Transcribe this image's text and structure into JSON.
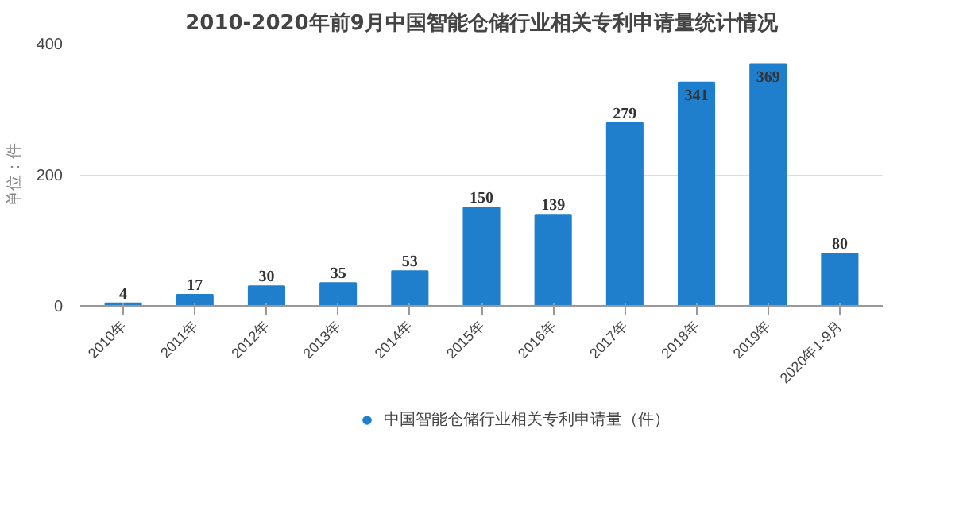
{
  "chart_data": {
    "type": "bar",
    "title": "2010-2020年前9月中国智能仓储行业相关专利申请量统计情况",
    "ylabel": "单位：件",
    "categories": [
      "2010年",
      "2011年",
      "2012年",
      "2013年",
      "2014年",
      "2015年",
      "2016年",
      "2017年",
      "2018年",
      "2019年",
      "2020年1-9月"
    ],
    "series": [
      {
        "name": "中国智能仓储行业相关专利申请量（件）",
        "color": "#1f7fcc",
        "values": [
          4,
          17,
          30,
          35,
          53,
          150,
          139,
          279,
          341,
          369,
          80
        ]
      }
    ],
    "ylim": [
      0,
      400
    ],
    "yticks": [
      0,
      200,
      400
    ],
    "grid": "y",
    "legend": "bottom",
    "data_labels": true
  }
}
